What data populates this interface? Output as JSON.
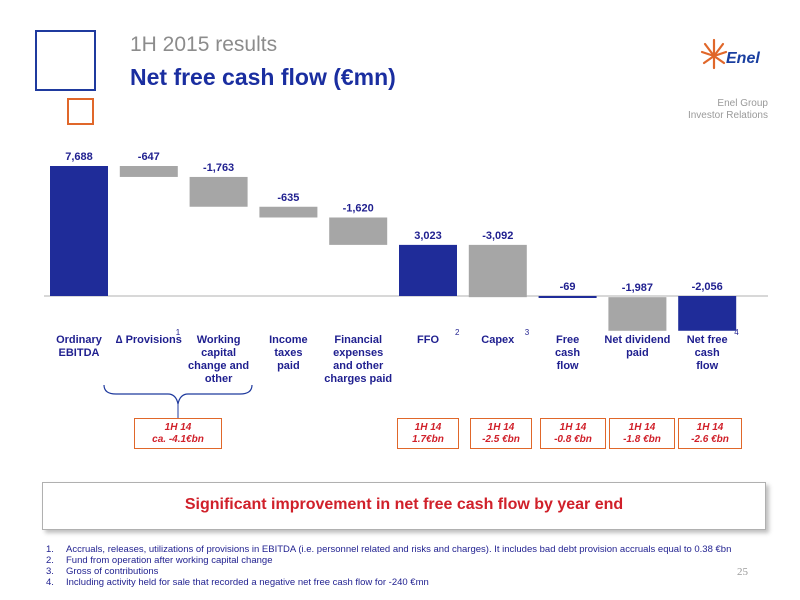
{
  "header": {
    "subtitle": "1H 2015 results",
    "title": "Net free cash flow (€mn)",
    "logo_text": "Enel",
    "group_line1": "Enel Group",
    "group_line2": "Investor Relations"
  },
  "colors": {
    "positive": "#1f2c99",
    "negative": "#a6a6a6",
    "brand_orange": "#e0672a",
    "highlight_red": "#d0202a"
  },
  "chart_data": {
    "type": "bar",
    "subtype": "waterfall",
    "categories": [
      "Ordinary EBITDA",
      "∆ Provisions",
      "Working capital change and other",
      "Income taxes paid",
      "Financial expenses and other charges paid",
      "FFO",
      "Capex",
      "Free cash flow",
      "Net dividend paid",
      "Net free cash flow"
    ],
    "category_labels": [
      [
        "Ordinary",
        "EBITDA"
      ],
      [
        "∆ Provisions"
      ],
      [
        "Working",
        "capital",
        "change and",
        "other"
      ],
      [
        "Income",
        "taxes",
        "paid"
      ],
      [
        "Financial",
        "expenses",
        "and other",
        "charges paid"
      ],
      [
        "FFO"
      ],
      [
        "Capex"
      ],
      [
        "Free",
        "cash",
        "flow"
      ],
      [
        "Net dividend",
        "paid"
      ],
      [
        "Net free",
        "cash",
        "flow"
      ]
    ],
    "footnote_refs": [
      "",
      "1",
      "",
      "",
      "",
      "2",
      "3",
      "",
      "",
      "4"
    ],
    "values": [
      7688,
      -647,
      -1763,
      -635,
      -1620,
      3023,
      -3092,
      -69,
      -1987,
      -2056
    ],
    "value_labels": [
      "7,688",
      "-647",
      "-1,763",
      "-635",
      "-1,620",
      "3,023",
      "-3,092",
      "-69",
      "-1,987",
      "-2,056"
    ],
    "bar_kind": [
      "total",
      "delta",
      "delta",
      "delta",
      "delta",
      "total",
      "delta",
      "total",
      "delta",
      "total"
    ]
  },
  "comparisons": [
    {
      "line1": "1H 14",
      "line2": "ca. -4.1€bn"
    },
    {
      "line1": "1H 14",
      "line2": "1.7€bn"
    },
    {
      "line1": "1H 14",
      "line2": "-2.5 €bn"
    },
    {
      "line1": "1H 14",
      "line2": "-0.8 €bn"
    },
    {
      "line1": "1H 14",
      "line2": "-1.8 €bn"
    },
    {
      "line1": "1H 14",
      "line2": "-2.6 €bn"
    }
  ],
  "highlight": "Significant improvement in net free cash flow by year end",
  "footnotes": [
    {
      "num": "1.",
      "text": "Accruals, releases, utilizations of provisions in EBITDA (i.e. personnel related and risks and charges). It includes bad debt provision accruals equal to 0.38 €bn"
    },
    {
      "num": "2.",
      "text": "Fund from operation after working capital change"
    },
    {
      "num": "3.",
      "text": "Gross of contributions"
    },
    {
      "num": "4.",
      "text": "Including activity held for sale that recorded a negative net free cash flow for -240 €mn"
    }
  ],
  "page_number": "25"
}
